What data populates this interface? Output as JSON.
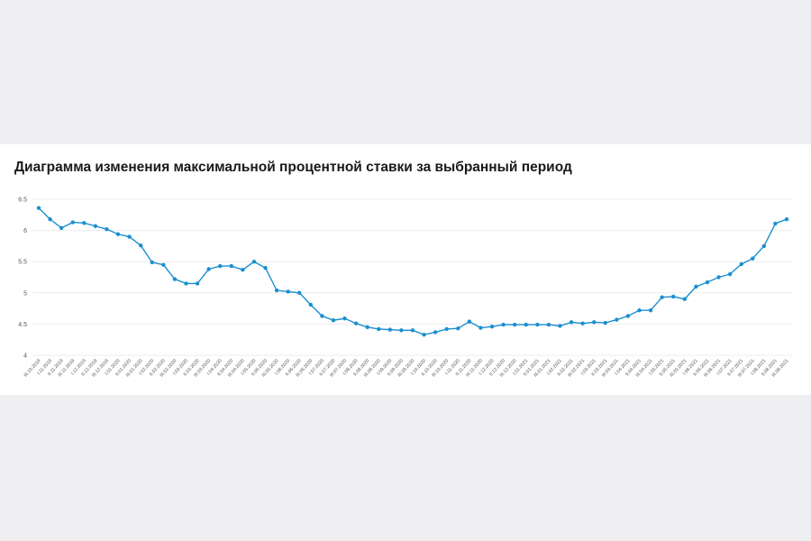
{
  "title": "Диаграмма изменения максимальной процентной ставки за выбранный период",
  "colors": {
    "line": "#1b8fd0",
    "background": "#efeff1",
    "card": "#ffffff"
  },
  "chart_data": {
    "type": "line",
    "ylim": [
      4,
      6.5
    ],
    "y_ticks": [
      "6.5",
      "6",
      "5.5",
      "5",
      "4.5",
      "4"
    ],
    "grid": true,
    "x": [
      "III.10.2019",
      "I.11.2019",
      "II.11.2019",
      "III.11.2019",
      "I.12.2019",
      "II.12.2019",
      "III.12.2019",
      "I.01.2020",
      "II.01.2020",
      "III.01.2020",
      "I.02.2020",
      "II.02.2020",
      "III.02.2020",
      "I.03.2020",
      "II.03.2020",
      "III.03.2020",
      "I.04.2020",
      "II.04.2020",
      "III.04.2020",
      "I.05.2020",
      "II.05.2020",
      "III.05.2020",
      "I.06.2020",
      "II.06.2020",
      "III.06.2020",
      "I.07.2020",
      "II.07.2020",
      "III.07.2020",
      "I.08.2020",
      "II.08.2020",
      "III.08.2020",
      "I.09.2020",
      "II.09.2020",
      "III.09.2020",
      "I.10.2020",
      "II.10.2020",
      "III.10.2020",
      "I.11.2020",
      "II.11.2020",
      "III.11.2020",
      "I.12.2020",
      "II.12.2020",
      "III.12.2020",
      "I.01.2021",
      "II.01.2021",
      "III.01.2021",
      "I.02.2021",
      "II.02.2021",
      "III.02.2021",
      "I.03.2021",
      "II.03.2021",
      "III.03.2021",
      "I.04.2021",
      "II.04.2021",
      "III.04.2021",
      "I.05.2021",
      "II.05.2021",
      "III.05.2021",
      "I.06.2021",
      "II.06.2021",
      "III.06.2021",
      "I.07.2021",
      "II.07.2021",
      "III.07.2021",
      "I.08.2021",
      "II.08.2021",
      "III.08.2021"
    ],
    "series": [
      {
        "values": [
          6.36,
          6.18,
          6.04,
          6.13,
          6.12,
          6.07,
          6.02,
          5.94,
          5.9,
          5.76,
          5.49,
          5.45,
          5.22,
          5.15,
          5.15,
          5.38,
          5.43,
          5.43,
          5.37,
          5.5,
          5.4,
          5.04,
          5.02,
          5.0,
          4.81,
          4.63,
          4.56,
          4.59,
          4.51,
          4.45,
          4.42,
          4.41,
          4.4,
          4.4,
          4.33,
          4.37,
          4.42,
          4.43,
          4.54,
          4.44,
          4.46,
          4.49,
          4.49,
          4.49,
          4.49,
          4.49,
          4.47,
          4.53,
          4.51,
          4.53,
          4.52,
          4.57,
          4.63,
          4.72,
          4.72,
          4.93,
          4.94,
          4.9,
          5.1,
          5.17,
          5.25,
          5.3,
          5.46,
          5.55,
          5.75,
          6.11,
          6.18
        ]
      }
    ]
  }
}
